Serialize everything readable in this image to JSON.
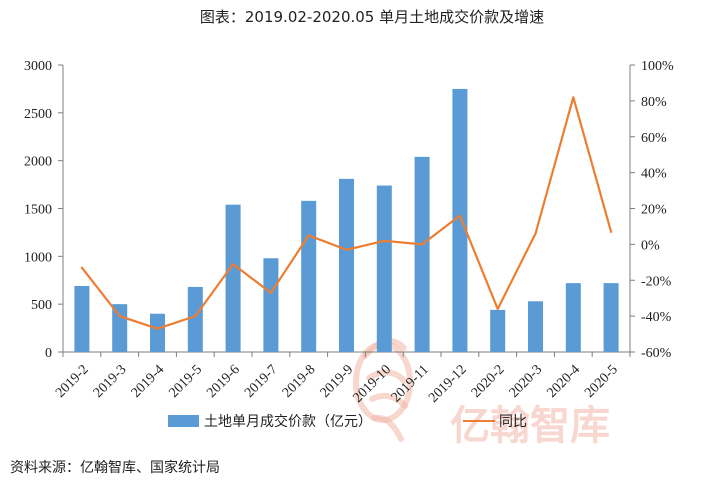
{
  "source_note": "资料来源：亿翰智库、国家统计局",
  "watermark": "亿翰智库",
  "colors": {
    "bar": "#5b9bd5",
    "line": "#ed7d31",
    "axis": "#7f7f7f",
    "watermark": "#f2b7a8"
  },
  "chart_data": {
    "type": "bar",
    "title": "图表：2019.02-2020.05 单月土地成交价款及增速",
    "categories": [
      "2019-2",
      "2019-3",
      "2019-4",
      "2019-5",
      "2019-6",
      "2019-7",
      "2019-8",
      "2019-9",
      "2019-10",
      "2019-11",
      "2019-12",
      "2020-2",
      "2020-3",
      "2020-4",
      "2020-5"
    ],
    "series": [
      {
        "name": "土地单月成交价款（亿元）",
        "type": "bar",
        "axis": "left",
        "values": [
          690,
          500,
          400,
          680,
          1540,
          980,
          1580,
          1810,
          1740,
          2040,
          2750,
          440,
          530,
          720,
          720
        ]
      },
      {
        "name": "同比",
        "type": "line",
        "axis": "right",
        "values": [
          -13,
          -40,
          -47,
          -40,
          -11,
          -27,
          5,
          -3,
          2,
          0,
          16,
          -36,
          6,
          82,
          7
        ]
      }
    ],
    "y_left": {
      "min": 0,
      "max": 3000,
      "ticks": [
        0,
        500,
        1000,
        1500,
        2000,
        2500,
        3000
      ],
      "tick_labels": [
        "0",
        "500",
        "1000",
        "1500",
        "2000",
        "2500",
        "3000"
      ]
    },
    "y_right": {
      "min": -60,
      "max": 100,
      "ticks": [
        -60,
        -40,
        -20,
        0,
        20,
        40,
        60,
        80,
        100
      ],
      "tick_labels": [
        "-60%",
        "-40%",
        "-20%",
        "0%",
        "20%",
        "40%",
        "60%",
        "80%",
        "100%"
      ]
    },
    "legend": {
      "position": "bottom",
      "items": [
        "土地单月成交价款（亿元）",
        "同比"
      ]
    },
    "grid": false
  }
}
